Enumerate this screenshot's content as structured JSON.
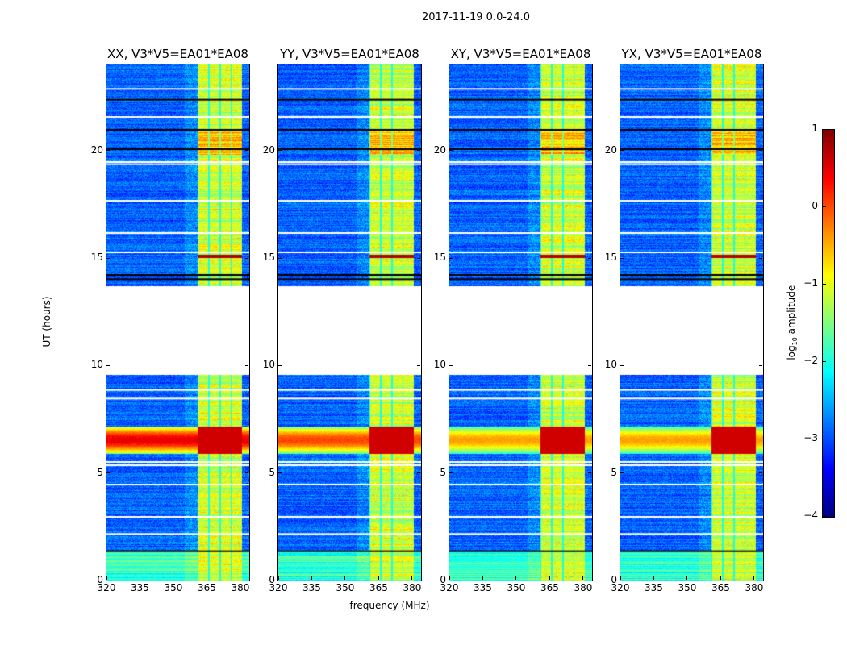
{
  "chart_data": {
    "type": "heatmap",
    "title": "2017-11-19 0.0-24.0",
    "xlabel": "frequency (MHz)",
    "ylabel": "UT (hours)",
    "xlim": [
      320,
      384
    ],
    "ylim": [
      0,
      24
    ],
    "xticks": [
      "320",
      "335",
      "350",
      "365",
      "380"
    ],
    "xtick_values": [
      320,
      335,
      350,
      365,
      380
    ],
    "yticks": [
      "0",
      "5",
      "10",
      "15",
      "20"
    ],
    "ytick_values": [
      0,
      5,
      10,
      15,
      20
    ],
    "panels": [
      {
        "title": "XX, V3*V5=EA01*EA08",
        "rfi_strength": 1.0
      },
      {
        "title": "YY, V3*V5=EA01*EA08",
        "rfi_strength": 0.9
      },
      {
        "title": "XY, V3*V5=EA01*EA08",
        "rfi_strength": 0.8
      },
      {
        "title": "YX, V3*V5=EA01*EA08",
        "rfi_strength": 0.8
      }
    ],
    "features": {
      "data_gap_hours": [
        9.6,
        13.7
      ],
      "bright_band_mhz": [
        360.5,
        380.5
      ],
      "strong_rfi_hours": [
        5.9,
        7.2
      ],
      "black_rows_hours": [
        1.4,
        14.05,
        14.25,
        22.4,
        21.0,
        20.1
      ],
      "white_rows_hours": [
        5.4,
        5.55,
        2.2,
        3.0,
        4.5,
        8.5,
        8.9,
        15.3,
        19.4,
        19.5,
        17.7,
        16.2,
        21.6,
        22.9
      ]
    },
    "colorbar": {
      "label": "log10 amplitude",
      "label_main": "log",
      "label_sub": "10",
      "label_rest": " amplitude",
      "range": [
        -4,
        1
      ],
      "ticks": [
        "1",
        "0",
        "−1",
        "−2",
        "−3",
        "−4"
      ],
      "tick_values": [
        1,
        0,
        -1,
        -2,
        -3,
        -4
      ],
      "colormap": "jet"
    }
  }
}
